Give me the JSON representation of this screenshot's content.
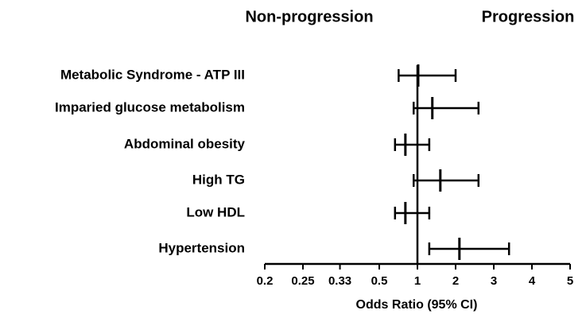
{
  "chart_data": {
    "type": "forest",
    "left_header": "Non-progression",
    "right_header": "Progression",
    "xlabel": "Odds  Ratio (95% CI)",
    "categories": [
      "Metabolic Syndrome - ATP III",
      "Imparied glucose metabolism",
      "Abdominal obesity",
      "High TG",
      "Low HDL",
      "Hypertension"
    ],
    "values": [
      1.02,
      1.39,
      0.76,
      1.6,
      0.76,
      2.1
    ],
    "lower": [
      0.67,
      0.91,
      0.63,
      0.91,
      0.63,
      1.31
    ],
    "upper": [
      2.0,
      2.6,
      1.31,
      2.6,
      1.31,
      3.4
    ],
    "xscale": "reciprocal",
    "reference": 1,
    "xlim": [
      0.2,
      5
    ],
    "xticks": [
      0.2,
      0.25,
      0.33,
      0.5,
      1,
      2,
      3,
      4,
      5
    ],
    "color": "#000000"
  }
}
